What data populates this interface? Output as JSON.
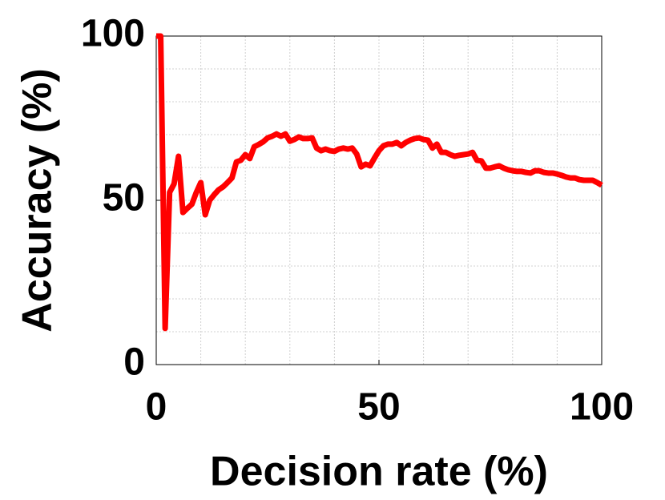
{
  "chart_data": {
    "type": "line",
    "xlabel": "Decision rate (%)",
    "ylabel": "Accuracy (%)",
    "x": [
      0,
      1,
      2,
      3,
      4,
      5,
      6,
      7,
      8,
      9,
      10,
      11,
      12,
      13,
      14,
      15,
      16,
      17,
      18,
      19,
      20,
      21,
      22,
      23,
      24,
      25,
      26,
      27,
      28,
      29,
      30,
      31,
      32,
      33,
      34,
      35,
      36,
      37,
      38,
      39,
      40,
      41,
      42,
      43,
      44,
      45,
      46,
      47,
      48,
      49,
      50,
      51,
      52,
      53,
      54,
      55,
      56,
      57,
      58,
      59,
      60,
      61,
      62,
      63,
      64,
      65,
      66,
      67,
      68,
      69,
      70,
      71,
      72,
      73,
      74,
      75,
      76,
      77,
      78,
      79,
      80,
      81,
      82,
      83,
      84,
      85,
      86,
      87,
      88,
      89,
      90,
      91,
      92,
      93,
      94,
      95,
      96,
      97,
      98,
      99,
      100
    ],
    "values": [
      100,
      100,
      11,
      52.4,
      55,
      63.4,
      46.3,
      47.6,
      48.8,
      52.4,
      55.4,
      45.6,
      50,
      51.7,
      53.2,
      54.1,
      55.4,
      56.8,
      61.7,
      62.2,
      63.9,
      62.7,
      66.3,
      67,
      67.8,
      69,
      69.5,
      70.2,
      69.5,
      70.2,
      68,
      68.5,
      69.3,
      68.8,
      68.8,
      69,
      65.9,
      65.1,
      65.6,
      65.1,
      64.9,
      65.6,
      65.9,
      65.6,
      65.9,
      64.1,
      60.2,
      61,
      60.5,
      62.9,
      65.1,
      66.6,
      67.1,
      67.1,
      67.6,
      66.6,
      67.6,
      68.3,
      68.8,
      69,
      68.5,
      68.3,
      65.9,
      67.1,
      64.6,
      64.6,
      63.9,
      63.4,
      63.7,
      63.9,
      64.1,
      64.6,
      62.2,
      62,
      59.8,
      59.8,
      60.2,
      60.5,
      59.8,
      59.3,
      59,
      58.8,
      58.8,
      58.5,
      58.3,
      59,
      59,
      58.5,
      58.3,
      58.3,
      58,
      57.6,
      57.1,
      56.8,
      56.8,
      56.3,
      56.1,
      56.1,
      56.1,
      55.4,
      54.6
    ],
    "color": "#ff0000",
    "xlim": [
      0,
      100
    ],
    "ylim": [
      0,
      100
    ],
    "xticks": [
      0,
      50,
      100
    ],
    "yticks": [
      0,
      50,
      100
    ],
    "minor_xticks": [
      10,
      20,
      30,
      40,
      60,
      70,
      80,
      90
    ],
    "minor_yticks": [
      10,
      20,
      30,
      40,
      60,
      70,
      80,
      90
    ],
    "grid": true
  }
}
